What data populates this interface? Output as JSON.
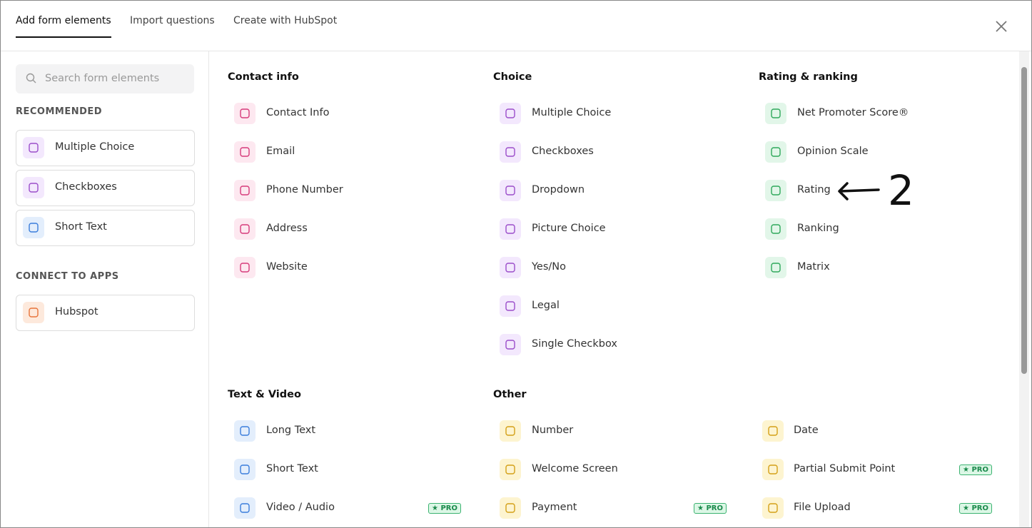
{
  "tabs": [
    "Add form elements",
    "Import questions",
    "Create with HubSpot"
  ],
  "search_placeholder": "Search form elements",
  "sidebar": [
    {
      "title": "RECOMMENDED",
      "items": [
        "Multiple Choice",
        "Checkboxes",
        "Short Text"
      ]
    },
    {
      "title": "CONNECT TO APPS",
      "items": [
        "Hubspot"
      ]
    }
  ],
  "groups": [
    {
      "title": "Contact info",
      "items": [
        {
          "label": "Contact Info"
        },
        {
          "label": "Email"
        },
        {
          "label": "Phone Number"
        },
        {
          "label": "Address"
        },
        {
          "label": "Website"
        }
      ]
    },
    {
      "title": "Choice",
      "items": [
        {
          "label": "Multiple Choice"
        },
        {
          "label": "Checkboxes"
        },
        {
          "label": "Dropdown"
        },
        {
          "label": "Picture Choice"
        },
        {
          "label": "Yes/No"
        },
        {
          "label": "Legal"
        },
        {
          "label": "Single Checkbox"
        }
      ]
    },
    {
      "title": "Rating & ranking",
      "items": [
        {
          "label": "Net Promoter Score®"
        },
        {
          "label": "Opinion Scale"
        },
        {
          "label": "Rating"
        },
        {
          "label": "Ranking"
        },
        {
          "label": "Matrix"
        }
      ]
    },
    {
      "title": "Text & Video",
      "items": [
        {
          "label": "Long Text"
        },
        {
          "label": "Short Text"
        },
        {
          "label": "Video / Audio",
          "badge": "★ PRO"
        }
      ]
    },
    {
      "title": "Other",
      "items": [
        {
          "label": "Number"
        },
        {
          "label": "Date"
        },
        {
          "label": "Welcome Screen"
        },
        {
          "label": "Partial Submit Point",
          "badge": "★ PRO"
        },
        {
          "label": "Payment",
          "badge": "★ PRO"
        },
        {
          "label": "File Upload",
          "badge": "★ PRO"
        }
      ]
    }
  ],
  "annotation": "2"
}
